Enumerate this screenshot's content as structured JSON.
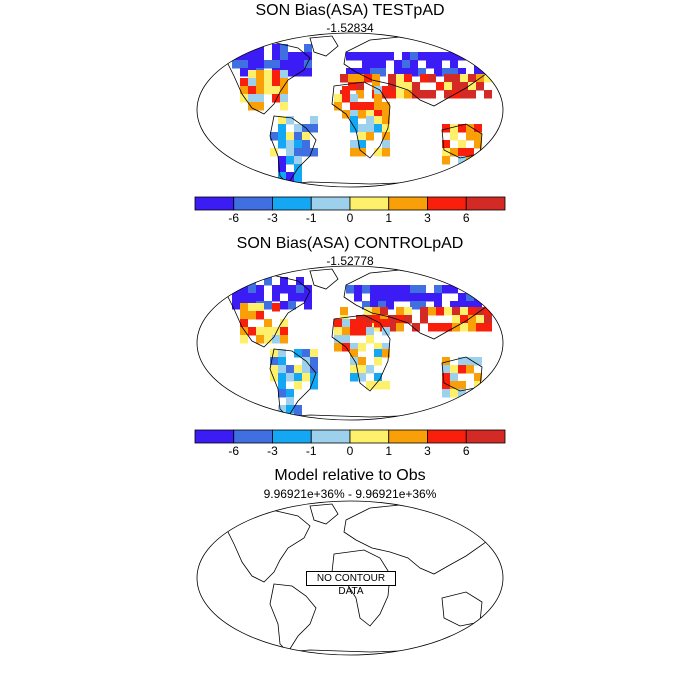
{
  "panels": [
    {
      "title": "SON Bias(ASA) TESTpAD",
      "stat": "-1.52834"
    },
    {
      "title": "SON Bias(ASA) CONTROLpAD",
      "stat": "-1.52778"
    },
    {
      "title": "Model relative to Obs",
      "stat": "9.96921e+36% - 9.96921e+36%",
      "message": "NO CONTOUR DATA"
    }
  ],
  "colorbar": {
    "colors": [
      "#3c1cf4",
      "#3f6fe0",
      "#14a8f4",
      "#9cd0ec",
      "#fff06c",
      "#f9a008",
      "#f8200c",
      "#d42a26"
    ],
    "labels": [
      "-6",
      "-3",
      "-1",
      "0",
      "1",
      "3",
      "6"
    ]
  }
}
